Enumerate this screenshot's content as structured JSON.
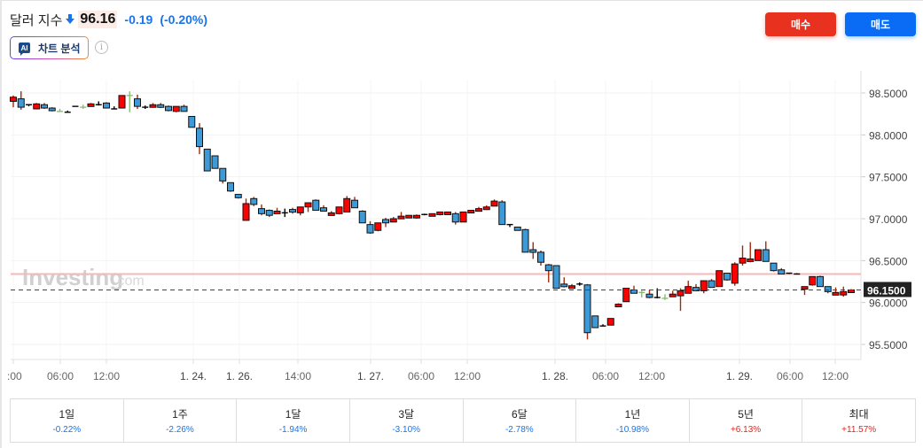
{
  "header": {
    "title": "달러 지수",
    "direction_icon": "arrow-down-icon",
    "price": "96.16",
    "change": "-0.19",
    "change_pct": "(-0.20%)"
  },
  "ai_button": {
    "badge": "AI",
    "label": "차트 분석"
  },
  "info_icon": "i",
  "buttons": {
    "buy": "매수",
    "sell": "매도"
  },
  "colors": {
    "up_body": "#ff0000",
    "down_body": "#3d9ad6",
    "wick_up": "#a52a0a",
    "wick_neutral_green": "#88c070",
    "negative_text": "#1a73e8",
    "positive_text": "#e0251a",
    "buy_button": "#e8321f",
    "sell_button": "#0a6cf5",
    "last_price_tag": "#222222",
    "resistance_line": "#f4b8b8"
  },
  "watermark": {
    "brand": "Investing",
    "suffix": ".com"
  },
  "chart_data": {
    "type": "candlestick",
    "title": "달러 지수",
    "ylabel": "",
    "xlabel": "",
    "ylim": [
      95.3,
      98.7
    ],
    "y_ticks": [
      "98.5000",
      "98.0000",
      "97.5000",
      "97.0000",
      "96.5000",
      "96.0000",
      "95.5000"
    ],
    "x_ticks": [
      ":00",
      "06:00",
      "12:00",
      "1. 24.",
      "1. 26.",
      "14:00",
      "1. 27.",
      "06:00",
      "12:00",
      "1. 28.",
      "06:00",
      "12:00",
      "1. 29.",
      "06:00",
      "12:00"
    ],
    "last_price_label": "96.1500",
    "horizontal_line": 96.34,
    "grid": true,
    "candles": [
      {
        "o": 98.4,
        "h": 98.47,
        "l": 98.33,
        "c": 98.45
      },
      {
        "o": 98.43,
        "h": 98.52,
        "l": 98.3,
        "c": 98.33
      },
      {
        "o": 98.36,
        "h": 98.36,
        "l": 98.34,
        "c": 98.36
      },
      {
        "o": 98.31,
        "h": 98.38,
        "l": 98.31,
        "c": 98.37
      },
      {
        "o": 98.36,
        "h": 98.38,
        "l": 98.31,
        "c": 98.32
      },
      {
        "o": 98.32,
        "h": 98.33,
        "l": 98.28,
        "c": 98.29
      },
      {
        "o": 98.28,
        "h": 98.31,
        "l": 98.28,
        "c": 98.28
      },
      {
        "o": 98.27,
        "h": 98.29,
        "l": 98.27,
        "c": 98.27
      },
      {
        "o": 98.34,
        "h": 98.34,
        "l": 98.34,
        "c": 98.34
      },
      {
        "o": 98.33,
        "h": 98.36,
        "l": 98.31,
        "c": 98.33
      },
      {
        "o": 98.35,
        "h": 98.38,
        "l": 98.35,
        "c": 98.37
      },
      {
        "o": 98.36,
        "h": 98.4,
        "l": 98.35,
        "c": 98.36
      },
      {
        "o": 98.38,
        "h": 98.39,
        "l": 98.32,
        "c": 98.32
      },
      {
        "o": 98.31,
        "h": 98.34,
        "l": 98.31,
        "c": 98.31
      },
      {
        "o": 98.32,
        "h": 98.47,
        "l": 98.32,
        "c": 98.47
      },
      {
        "o": 98.47,
        "h": 98.52,
        "l": 98.27,
        "c": 98.47
      },
      {
        "o": 98.43,
        "h": 98.48,
        "l": 98.31,
        "c": 98.34
      },
      {
        "o": 98.33,
        "h": 98.35,
        "l": 98.31,
        "c": 98.33
      },
      {
        "o": 98.34,
        "h": 98.38,
        "l": 98.33,
        "c": 98.36
      },
      {
        "o": 98.36,
        "h": 98.38,
        "l": 98.32,
        "c": 98.33
      },
      {
        "o": 98.34,
        "h": 98.35,
        "l": 98.28,
        "c": 98.29
      },
      {
        "o": 98.28,
        "h": 98.34,
        "l": 98.27,
        "c": 98.34
      },
      {
        "o": 98.34,
        "h": 98.36,
        "l": 98.28,
        "c": 98.28
      },
      {
        "o": 98.22,
        "h": 98.22,
        "l": 98.09,
        "c": 98.09
      },
      {
        "o": 98.08,
        "h": 98.14,
        "l": 97.77,
        "c": 97.86
      },
      {
        "o": 97.83,
        "h": 97.83,
        "l": 97.57,
        "c": 97.57
      },
      {
        "o": 97.75,
        "h": 97.75,
        "l": 97.6,
        "c": 97.6
      },
      {
        "o": 97.6,
        "h": 97.6,
        "l": 97.42,
        "c": 97.45
      },
      {
        "o": 97.43,
        "h": 97.43,
        "l": 97.32,
        "c": 97.33
      },
      {
        "o": 97.29,
        "h": 97.29,
        "l": 97.24,
        "c": 97.25
      },
      {
        "o": 96.98,
        "h": 97.24,
        "l": 96.98,
        "c": 97.18
      },
      {
        "o": 97.24,
        "h": 97.26,
        "l": 97.15,
        "c": 97.17
      },
      {
        "o": 97.12,
        "h": 97.17,
        "l": 97.04,
        "c": 97.06
      },
      {
        "o": 97.1,
        "h": 97.11,
        "l": 97.02,
        "c": 97.04
      },
      {
        "o": 97.08,
        "h": 97.13,
        "l": 97.07,
        "c": 97.09
      },
      {
        "o": 97.07,
        "h": 97.12,
        "l": 97.02,
        "c": 97.07
      },
      {
        "o": 97.11,
        "h": 97.13,
        "l": 97.06,
        "c": 97.09
      },
      {
        "o": 97.07,
        "h": 97.13,
        "l": 97.04,
        "c": 97.14
      },
      {
        "o": 97.14,
        "h": 97.18,
        "l": 97.08,
        "c": 97.19
      },
      {
        "o": 97.22,
        "h": 97.23,
        "l": 97.13,
        "c": 97.1
      },
      {
        "o": 97.13,
        "h": 97.16,
        "l": 97.09,
        "c": 97.09
      },
      {
        "o": 97.06,
        "h": 97.09,
        "l": 97.04,
        "c": 97.07
      },
      {
        "o": 97.06,
        "h": 97.12,
        "l": 97.05,
        "c": 97.14
      },
      {
        "o": 97.08,
        "h": 97.27,
        "l": 97.08,
        "c": 97.24
      },
      {
        "o": 97.22,
        "h": 97.26,
        "l": 97.13,
        "c": 97.13
      },
      {
        "o": 97.09,
        "h": 97.1,
        "l": 96.95,
        "c": 96.95
      },
      {
        "o": 96.93,
        "h": 96.97,
        "l": 96.82,
        "c": 96.83
      },
      {
        "o": 96.86,
        "h": 96.94,
        "l": 96.85,
        "c": 96.95
      },
      {
        "o": 96.99,
        "h": 97.01,
        "l": 96.9,
        "c": 96.95
      },
      {
        "o": 96.96,
        "h": 97.02,
        "l": 96.96,
        "c": 97.0
      },
      {
        "o": 97.02,
        "h": 97.08,
        "l": 97.02,
        "c": 97.03
      },
      {
        "o": 97.02,
        "h": 97.04,
        "l": 97.01,
        "c": 97.04
      },
      {
        "o": 97.02,
        "h": 97.05,
        "l": 97.0,
        "c": 97.04
      },
      {
        "o": 97.05,
        "h": 97.06,
        "l": 97.04,
        "c": 97.05
      },
      {
        "o": 97.05,
        "h": 97.06,
        "l": 97.05,
        "c": 97.06
      },
      {
        "o": 97.05,
        "h": 97.08,
        "l": 97.04,
        "c": 97.08
      },
      {
        "o": 97.07,
        "h": 97.08,
        "l": 97.07,
        "c": 97.08
      },
      {
        "o": 97.06,
        "h": 97.08,
        "l": 96.93,
        "c": 96.96
      },
      {
        "o": 96.96,
        "h": 97.08,
        "l": 96.96,
        "c": 97.08
      },
      {
        "o": 97.09,
        "h": 97.09,
        "l": 97.08,
        "c": 97.1
      },
      {
        "o": 97.1,
        "h": 97.14,
        "l": 97.1,
        "c": 97.12
      },
      {
        "o": 97.13,
        "h": 97.16,
        "l": 97.11,
        "c": 97.14
      },
      {
        "o": 97.15,
        "h": 97.23,
        "l": 97.16,
        "c": 97.21
      },
      {
        "o": 97.2,
        "h": 97.22,
        "l": 96.93,
        "c": 96.93
      },
      {
        "o": 96.93,
        "h": 96.93,
        "l": 96.9,
        "c": 96.93
      },
      {
        "o": 96.9,
        "h": 96.9,
        "l": 96.86,
        "c": 96.86
      },
      {
        "o": 96.87,
        "h": 96.88,
        "l": 96.6,
        "c": 96.6
      },
      {
        "o": 96.63,
        "h": 96.72,
        "l": 96.52,
        "c": 96.62
      },
      {
        "o": 96.6,
        "h": 96.62,
        "l": 96.44,
        "c": 96.48
      },
      {
        "o": 96.45,
        "h": 96.46,
        "l": 96.24,
        "c": 96.38
      },
      {
        "o": 96.44,
        "h": 96.44,
        "l": 96.17,
        "c": 96.17
      },
      {
        "o": 96.22,
        "h": 96.3,
        "l": 96.18,
        "c": 96.21
      },
      {
        "o": 96.19,
        "h": 96.22,
        "l": 96.17,
        "c": 96.2
      },
      {
        "o": 96.22,
        "h": 96.24,
        "l": 96.2,
        "c": 96.22
      },
      {
        "o": 96.21,
        "h": 96.22,
        "l": 95.56,
        "c": 95.64
      },
      {
        "o": 95.84,
        "h": 95.84,
        "l": 95.7,
        "c": 95.7
      },
      {
        "o": 95.72,
        "h": 95.74,
        "l": 95.73,
        "c": 95.72
      },
      {
        "o": 95.73,
        "h": 95.81,
        "l": 95.73,
        "c": 95.81
      },
      {
        "o": 95.97,
        "h": 95.99,
        "l": 95.96,
        "c": 95.98
      },
      {
        "o": 96.01,
        "h": 96.17,
        "l": 96.01,
        "c": 96.17
      },
      {
        "o": 96.15,
        "h": 96.2,
        "l": 96.11,
        "c": 96.11
      },
      {
        "o": 96.12,
        "h": 96.14,
        "l": 96.06,
        "c": 96.12
      },
      {
        "o": 96.1,
        "h": 96.15,
        "l": 96.05,
        "c": 96.06
      },
      {
        "o": 96.06,
        "h": 96.17,
        "l": 96.05,
        "c": 96.06
      },
      {
        "o": 96.05,
        "h": 96.1,
        "l": 96.03,
        "c": 96.05
      },
      {
        "o": 96.07,
        "h": 96.14,
        "l": 96.07,
        "c": 96.1
      },
      {
        "o": 96.08,
        "h": 96.17,
        "l": 95.9,
        "c": 96.14
      },
      {
        "o": 96.11,
        "h": 96.26,
        "l": 96.11,
        "c": 96.19
      },
      {
        "o": 96.18,
        "h": 96.22,
        "l": 96.14,
        "c": 96.14
      },
      {
        "o": 96.14,
        "h": 96.22,
        "l": 96.11,
        "c": 96.26
      },
      {
        "o": 96.26,
        "h": 96.28,
        "l": 96.18,
        "c": 96.18
      },
      {
        "o": 96.19,
        "h": 96.37,
        "l": 96.19,
        "c": 96.38
      },
      {
        "o": 96.35,
        "h": 96.35,
        "l": 96.26,
        "c": 96.27
      },
      {
        "o": 96.23,
        "h": 96.48,
        "l": 96.2,
        "c": 96.46
      },
      {
        "o": 96.47,
        "h": 96.68,
        "l": 96.44,
        "c": 96.53
      },
      {
        "o": 96.5,
        "h": 96.72,
        "l": 96.48,
        "c": 96.52
      },
      {
        "o": 96.5,
        "h": 96.6,
        "l": 96.5,
        "c": 96.63
      },
      {
        "o": 96.63,
        "h": 96.73,
        "l": 96.54,
        "c": 96.49
      },
      {
        "o": 96.47,
        "h": 96.47,
        "l": 96.37,
        "c": 96.38
      },
      {
        "o": 96.39,
        "h": 96.41,
        "l": 96.34,
        "c": 96.34
      },
      {
        "o": 96.35,
        "h": 96.35,
        "l": 96.34,
        "c": 96.35
      },
      {
        "o": 96.34,
        "h": 96.35,
        "l": 96.34,
        "c": 96.34
      },
      {
        "o": 96.16,
        "h": 96.17,
        "l": 96.09,
        "c": 96.19
      },
      {
        "o": 96.21,
        "h": 96.29,
        "l": 96.2,
        "c": 96.31
      },
      {
        "o": 96.31,
        "h": 96.32,
        "l": 96.19,
        "c": 96.19
      },
      {
        "o": 96.19,
        "h": 96.18,
        "l": 96.11,
        "c": 96.13
      },
      {
        "o": 96.11,
        "h": 96.18,
        "l": 96.09,
        "c": 96.12
      },
      {
        "o": 96.09,
        "h": 96.19,
        "l": 96.07,
        "c": 96.13
      },
      {
        "o": 96.14,
        "h": 96.16,
        "l": 96.13,
        "c": 96.15
      }
    ]
  },
  "performance": [
    {
      "label": "1일",
      "value": "-0.22%",
      "sign": "neg"
    },
    {
      "label": "1주",
      "value": "-2.26%",
      "sign": "neg"
    },
    {
      "label": "1달",
      "value": "-1.94%",
      "sign": "neg"
    },
    {
      "label": "3달",
      "value": "-3.10%",
      "sign": "neg"
    },
    {
      "label": "6달",
      "value": "-2.78%",
      "sign": "neg"
    },
    {
      "label": "1년",
      "value": "-10.98%",
      "sign": "neg"
    },
    {
      "label": "5년",
      "value": "+6.13%",
      "sign": "pos"
    },
    {
      "label": "최대",
      "value": "+11.57%",
      "sign": "pos"
    }
  ]
}
